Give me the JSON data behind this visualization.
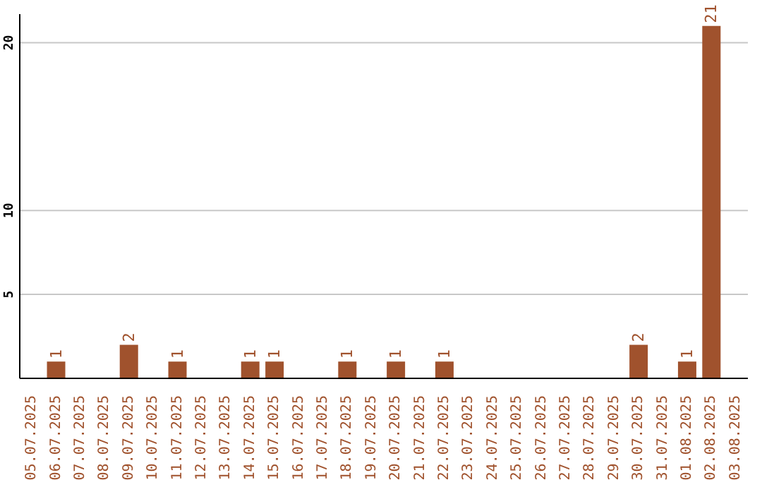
{
  "chart_data": {
    "type": "bar",
    "categories": [
      "05.07.2025",
      "06.07.2025",
      "07.07.2025",
      "08.07.2025",
      "09.07.2025",
      "10.07.2025",
      "11.07.2025",
      "12.07.2025",
      "13.07.2025",
      "14.07.2025",
      "15.07.2025",
      "16.07.2025",
      "17.07.2025",
      "18.07.2025",
      "19.07.2025",
      "20.07.2025",
      "21.07.2025",
      "22.07.2025",
      "23.07.2025",
      "24.07.2025",
      "25.07.2025",
      "26.07.2025",
      "27.07.2025",
      "28.07.2025",
      "29.07.2025",
      "30.07.2025",
      "31.07.2025",
      "01.08.2025",
      "02.08.2025",
      "03.08.2025"
    ],
    "values": [
      0,
      1,
      0,
      0,
      2,
      0,
      1,
      0,
      0,
      1,
      1,
      0,
      0,
      1,
      0,
      1,
      0,
      1,
      0,
      0,
      0,
      0,
      0,
      0,
      0,
      2,
      0,
      1,
      21,
      0
    ],
    "value_labels": [
      null,
      "1",
      null,
      null,
      "2",
      null,
      "1",
      null,
      null,
      "1",
      "1",
      null,
      null,
      "1",
      null,
      "1",
      null,
      "1",
      null,
      null,
      null,
      null,
      null,
      null,
      null,
      "2",
      null,
      "1",
      "21",
      null
    ],
    "color": "#a0522d",
    "ylim": [
      0,
      21.7
    ],
    "yticks": [
      5,
      10,
      20
    ],
    "grid": "y"
  }
}
